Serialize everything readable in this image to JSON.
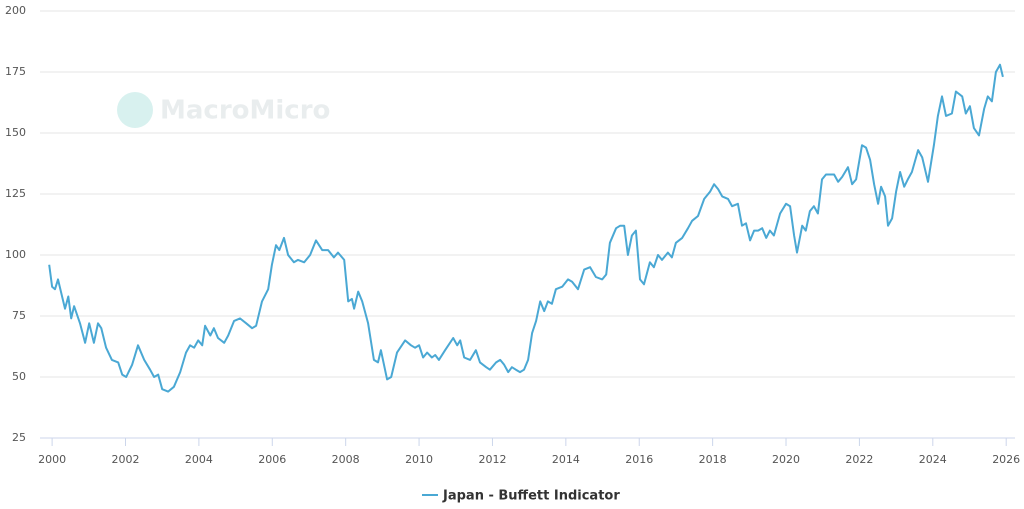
{
  "chart_data": {
    "type": "line",
    "watermark": "MacroMicro",
    "xlim": [
      1999.67,
      2026.24
    ],
    "xticks": [
      2000,
      2002,
      2004,
      2006,
      2008,
      2010,
      2012,
      2014,
      2016,
      2018,
      2020,
      2022,
      2024,
      2026
    ],
    "ylim": [
      25,
      200
    ],
    "yticks": [
      25,
      50,
      75,
      100,
      125,
      150,
      175,
      200
    ],
    "grid": true,
    "legend": "bottom",
    "x": [
      1999.92,
      2000.0,
      2000.08,
      2000.16,
      2000.35,
      2000.44,
      2000.52,
      2000.6,
      2000.76,
      2000.9,
      2001.01,
      2001.14,
      2001.25,
      2001.34,
      2001.47,
      2001.63,
      2001.8,
      2001.91,
      2002.02,
      2002.18,
      2002.34,
      2002.51,
      2002.67,
      2002.78,
      2002.89,
      2003.0,
      2003.16,
      2003.32,
      2003.49,
      2003.65,
      2003.76,
      2003.87,
      2003.98,
      2004.09,
      2004.17,
      2004.31,
      2004.41,
      2004.52,
      2004.69,
      2004.8,
      2004.96,
      2005.12,
      2005.29,
      2005.45,
      2005.56,
      2005.72,
      2005.89,
      2005.99,
      2006.1,
      2006.19,
      2006.32,
      2006.43,
      2006.59,
      2006.7,
      2006.87,
      2007.03,
      2007.19,
      2007.36,
      2007.52,
      2007.68,
      2007.79,
      2007.96,
      2008.07,
      2008.17,
      2008.23,
      2008.34,
      2008.45,
      2008.61,
      2008.77,
      2008.88,
      2008.96,
      2009.13,
      2009.24,
      2009.4,
      2009.62,
      2009.78,
      2009.89,
      2010.0,
      2010.11,
      2010.22,
      2010.35,
      2010.44,
      2010.54,
      2010.71,
      2010.93,
      2011.04,
      2011.12,
      2011.23,
      2011.39,
      2011.55,
      2011.66,
      2011.83,
      2011.93,
      2012.1,
      2012.21,
      2012.32,
      2012.43,
      2012.53,
      2012.64,
      2012.75,
      2012.86,
      2012.97,
      2013.08,
      2013.19,
      2013.3,
      2013.41,
      2013.51,
      2013.62,
      2013.73,
      2013.9,
      2014.06,
      2014.17,
      2014.33,
      2014.5,
      2014.66,
      2014.82,
      2014.99,
      2015.1,
      2015.2,
      2015.37,
      2015.48,
      2015.59,
      2015.69,
      2015.8,
      2015.91,
      2016.02,
      2016.13,
      2016.29,
      2016.4,
      2016.51,
      2016.62,
      2016.78,
      2016.89,
      2017.0,
      2017.17,
      2017.33,
      2017.44,
      2017.6,
      2017.77,
      2017.93,
      2018.04,
      2018.15,
      2018.26,
      2018.42,
      2018.53,
      2018.69,
      2018.8,
      2018.91,
      2019.02,
      2019.13,
      2019.24,
      2019.35,
      2019.46,
      2019.56,
      2019.67,
      2019.84,
      2020.0,
      2020.11,
      2020.22,
      2020.3,
      2020.44,
      2020.54,
      2020.65,
      2020.76,
      2020.87,
      2020.98,
      2021.09,
      2021.2,
      2021.31,
      2021.42,
      2021.53,
      2021.69,
      2021.8,
      2021.91,
      2022.07,
      2022.18,
      2022.29,
      2022.4,
      2022.51,
      2022.59,
      2022.7,
      2022.78,
      2022.89,
      2023.0,
      2023.11,
      2023.22,
      2023.32,
      2023.43,
      2023.6,
      2023.71,
      2023.87,
      2024.03,
      2024.14,
      2024.25,
      2024.36,
      2024.52,
      2024.63,
      2024.8,
      2024.9,
      2025.01,
      2025.12,
      2025.26,
      2025.4,
      2025.5,
      2025.61,
      2025.72,
      2025.83,
      2025.91
    ],
    "series": [
      {
        "name": "Japan - Buffett Indicator",
        "color": "#4aa8d4",
        "values": [
          96,
          87,
          86,
          90,
          78,
          83,
          74,
          79,
          72,
          64,
          72,
          64,
          72,
          70,
          62,
          57,
          56,
          51,
          50,
          55,
          63,
          57,
          53,
          50,
          51,
          45,
          44,
          46,
          52,
          60,
          63,
          62,
          65,
          63,
          71,
          67,
          70,
          66,
          64,
          67,
          73,
          74,
          72,
          70,
          71,
          81,
          86,
          96,
          104,
          102,
          107,
          100,
          97,
          98,
          97,
          100,
          106,
          102,
          102,
          99,
          101,
          98,
          81,
          82,
          78,
          85,
          81,
          72,
          57,
          56,
          61,
          49,
          50,
          60,
          65,
          63,
          62,
          63,
          58,
          60,
          58,
          59,
          57,
          61,
          66,
          63,
          65,
          58,
          57,
          61,
          56,
          54,
          53,
          56,
          57,
          55,
          52,
          54,
          53,
          52,
          53,
          57,
          68,
          73,
          81,
          77,
          81,
          80,
          86,
          87,
          90,
          89,
          86,
          94,
          95,
          91,
          90,
          92,
          105,
          111,
          112,
          112,
          100,
          108,
          110,
          90,
          88,
          97,
          95,
          100,
          98,
          101,
          99,
          105,
          107,
          111,
          114,
          116,
          123,
          126,
          129,
          127,
          124,
          123,
          120,
          121,
          112,
          113,
          106,
          110,
          110,
          111,
          107,
          110,
          108,
          117,
          121,
          120,
          108,
          101,
          112,
          110,
          118,
          120,
          117,
          131,
          133,
          133,
          133,
          130,
          132,
          136,
          129,
          131,
          145,
          144,
          139,
          129,
          121,
          128,
          124,
          112,
          115,
          126,
          134,
          128,
          131,
          134,
          143,
          140,
          130,
          145,
          157,
          165,
          157,
          158,
          167,
          165,
          158,
          161,
          152,
          149,
          160,
          165,
          163,
          175,
          178,
          173
        ]
      }
    ]
  }
}
